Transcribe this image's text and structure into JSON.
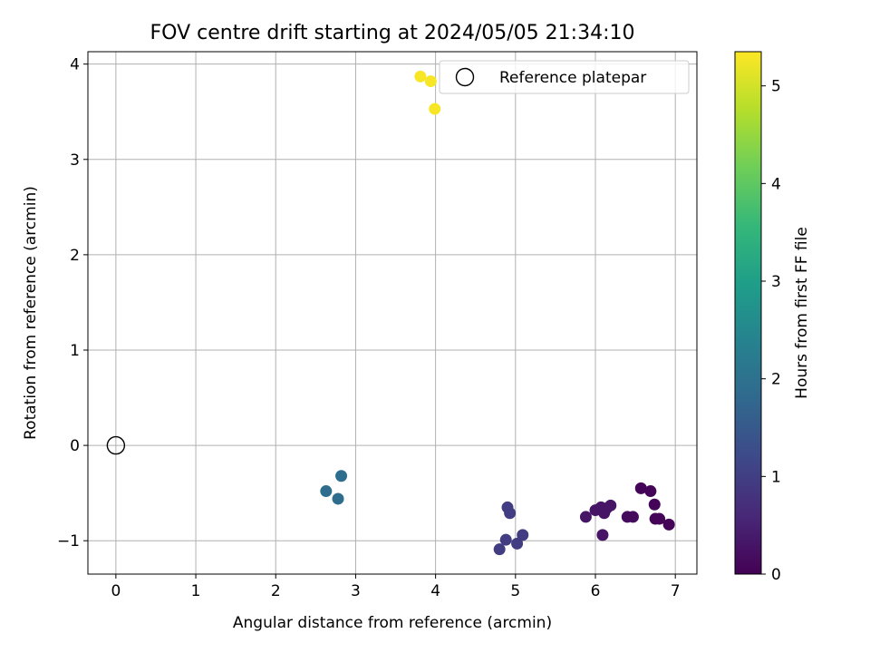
{
  "chart_data": {
    "type": "scatter",
    "title": "FOV centre drift starting at 2024/05/05 21:34:10",
    "xlabel": "Angular distance from reference (arcmin)",
    "ylabel": "Rotation from reference (arcmin)",
    "xlim": [
      -0.35,
      7.27
    ],
    "ylim": [
      -1.35,
      4.13
    ],
    "xticks": [
      0,
      1,
      2,
      3,
      4,
      5,
      6,
      7
    ],
    "yticks": [
      -1,
      0,
      1,
      2,
      3,
      4
    ],
    "xtick_labels": [
      "0",
      "1",
      "2",
      "3",
      "4",
      "5",
      "6",
      "7"
    ],
    "ytick_labels": [
      "−1",
      "0",
      "1",
      "2",
      "3",
      "4"
    ],
    "grid": true,
    "legend": {
      "position": "top-right",
      "entries": [
        "Reference platepar"
      ]
    },
    "reference_point": {
      "x": 0,
      "y": 0,
      "label": "Reference platepar"
    },
    "colorbar": {
      "label": "Hours from first FF file",
      "range": [
        0,
        5.35
      ],
      "ticks": [
        0,
        1,
        2,
        3,
        4,
        5
      ],
      "tick_labels": [
        "0",
        "1",
        "2",
        "3",
        "4",
        "5"
      ],
      "colormap": [
        "#440154",
        "#482878",
        "#3e4989",
        "#31688e",
        "#26828e",
        "#1f9e89",
        "#35b779",
        "#6ece58",
        "#b5de2b",
        "#fde725"
      ]
    },
    "points": [
      {
        "x": 3.81,
        "y": 3.87,
        "hours": 5.3
      },
      {
        "x": 3.94,
        "y": 3.82,
        "hours": 5.3
      },
      {
        "x": 3.99,
        "y": 3.53,
        "hours": 5.3
      },
      {
        "x": 2.63,
        "y": -0.48,
        "hours": 1.9
      },
      {
        "x": 2.78,
        "y": -0.56,
        "hours": 1.9
      },
      {
        "x": 2.82,
        "y": -0.32,
        "hours": 1.9
      },
      {
        "x": 4.8,
        "y": -1.09,
        "hours": 0.95
      },
      {
        "x": 4.88,
        "y": -0.99,
        "hours": 0.95
      },
      {
        "x": 4.9,
        "y": -0.65,
        "hours": 0.95
      },
      {
        "x": 4.93,
        "y": -0.71,
        "hours": 0.95
      },
      {
        "x": 5.02,
        "y": -1.03,
        "hours": 0.95
      },
      {
        "x": 5.09,
        "y": -0.94,
        "hours": 0.95
      },
      {
        "x": 5.88,
        "y": -0.75,
        "hours": 0.3
      },
      {
        "x": 6.0,
        "y": -0.68,
        "hours": 0.3
      },
      {
        "x": 6.07,
        "y": -0.65,
        "hours": 0.3
      },
      {
        "x": 6.09,
        "y": -0.94,
        "hours": 0.3
      },
      {
        "x": 6.11,
        "y": -0.71,
        "hours": 0.3
      },
      {
        "x": 6.14,
        "y": -0.66,
        "hours": 0.3
      },
      {
        "x": 6.19,
        "y": -0.63,
        "hours": 0.3
      },
      {
        "x": 6.4,
        "y": -0.75,
        "hours": 0.15
      },
      {
        "x": 6.47,
        "y": -0.75,
        "hours": 0.15
      },
      {
        "x": 6.57,
        "y": -0.45,
        "hours": 0.05
      },
      {
        "x": 6.69,
        "y": -0.48,
        "hours": 0.05
      },
      {
        "x": 6.74,
        "y": -0.62,
        "hours": 0.05
      },
      {
        "x": 6.75,
        "y": -0.77,
        "hours": 0.05
      },
      {
        "x": 6.8,
        "y": -0.77,
        "hours": 0.05
      },
      {
        "x": 6.92,
        "y": -0.83,
        "hours": 0.05
      }
    ]
  }
}
